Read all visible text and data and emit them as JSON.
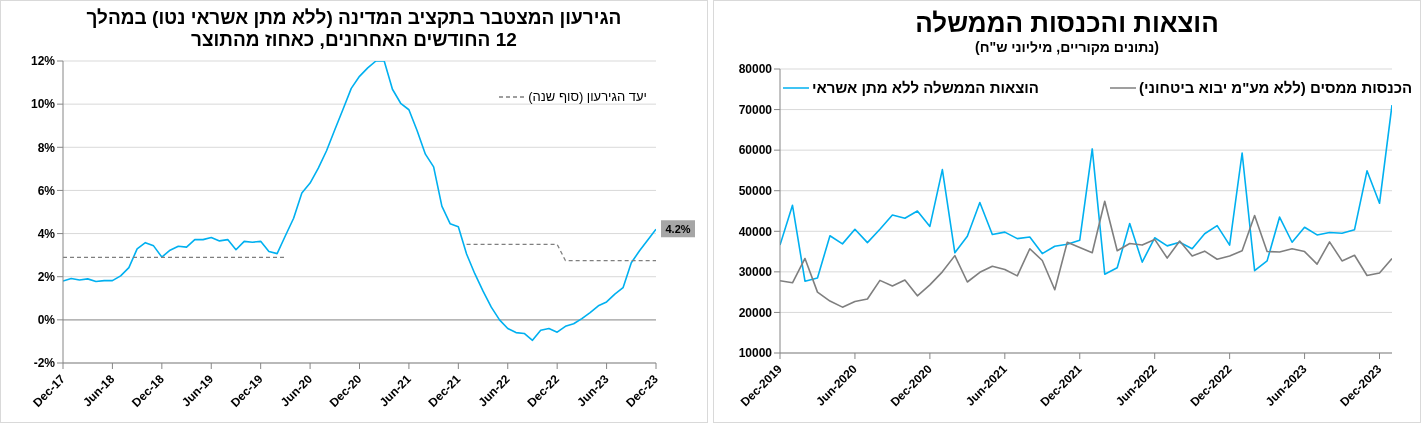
{
  "chart_data": [
    {
      "type": "line",
      "title": "הגירעון המצטבר בתקציב המדינה (ללא מתן אשראי נטו) במהלך 12 החודשים האחרונים, כאחוז מהתוצר",
      "categories": [
        "Dec-17",
        null,
        null,
        null,
        null,
        null,
        "Jun-18",
        null,
        null,
        null,
        null,
        null,
        "Dec-18",
        null,
        null,
        null,
        null,
        null,
        "Jun-19",
        null,
        null,
        null,
        null,
        null,
        "Dec-19",
        null,
        null,
        null,
        null,
        null,
        "Jun-20",
        null,
        null,
        null,
        null,
        null,
        "Dec-20",
        null,
        null,
        null,
        null,
        null,
        "Jun-21",
        null,
        null,
        null,
        null,
        null,
        "Dec-21",
        null,
        null,
        null,
        null,
        null,
        "Jun-22",
        null,
        null,
        null,
        null,
        null,
        "Dec-22",
        null,
        null,
        null,
        null,
        null,
        "Jun-23",
        null,
        null,
        null,
        null,
        null,
        "Dec-23"
      ],
      "series": [
        {
          "color": "#00b0f0",
          "values": [
            1.8,
            1.92,
            1.85,
            1.9,
            1.78,
            1.82,
            1.82,
            2.04,
            2.42,
            3.29,
            3.58,
            3.43,
            2.91,
            3.23,
            3.41,
            3.37,
            3.72,
            3.72,
            3.82,
            3.66,
            3.72,
            3.25,
            3.64,
            3.6,
            3.64,
            3.17,
            3.07,
            3.9,
            4.71,
            5.88,
            6.34,
            7.03,
            7.84,
            8.81,
            9.76,
            10.73,
            11.29,
            11.68,
            12,
            12,
            10.69,
            10.04,
            9.74,
            8.77,
            7.68,
            7.09,
            5.27,
            4.46,
            4.32,
            3.05,
            2.14,
            1.33,
            0.59,
            0,
            -0.4,
            -0.59,
            -0.63,
            -0.95,
            -0.48,
            -0.4,
            -0.57,
            -0.3,
            -0.18,
            0.06,
            0.34,
            0.65,
            0.83,
            1.19,
            1.49,
            2.65,
            3.2,
            3.7,
            4.2
          ]
        },
        {
          "name": "יעד הגירעון (סוף שנה)",
          "color": "#7f7f7f",
          "line_style": "dashed",
          "values": [
            2.9,
            2.9,
            2.9,
            2.9,
            2.9,
            2.9,
            2.9,
            2.9,
            2.9,
            2.9,
            2.9,
            2.9,
            2.9,
            2.9,
            2.9,
            2.9,
            2.9,
            2.9,
            2.9,
            2.9,
            2.9,
            2.9,
            2.9,
            2.9,
            2.9,
            2.9,
            2.9,
            2.9,
            null,
            null,
            null,
            null,
            null,
            null,
            null,
            null,
            null,
            null,
            null,
            null,
            null,
            null,
            null,
            null,
            null,
            null,
            null,
            null,
            null,
            3.5,
            3.5,
            3.5,
            3.5,
            3.5,
            3.5,
            3.5,
            3.5,
            3.5,
            3.5,
            3.5,
            3.5,
            2.75,
            2.75,
            2.75,
            2.75,
            2.75,
            2.75,
            2.75,
            2.75,
            2.75,
            2.75,
            2.75,
            2.75
          ]
        }
      ],
      "ylim": [
        -2,
        12
      ],
      "yticks": [
        {
          "value": -2,
          "label": "-2%"
        },
        {
          "value": 0,
          "label": "0%"
        },
        {
          "value": 2,
          "label": "2%"
        },
        {
          "value": 4,
          "label": "4%"
        },
        {
          "value": 6,
          "label": "6%"
        },
        {
          "value": 8,
          "label": "8%"
        },
        {
          "value": 10,
          "label": "10%"
        },
        {
          "value": 12,
          "label": "12%"
        }
      ],
      "ref_lines": [
        {
          "axis": "y",
          "value": 0,
          "color": "#a6a6a6"
        }
      ],
      "annotations": [
        {
          "text": "4.2%",
          "x": "Dec-23",
          "y": 4.2
        }
      ],
      "grid": "y",
      "legend": "top right"
    },
    {
      "type": "line",
      "title": "הוצאות והכנסות הממשלה",
      "subtitle": "(נתונים מקוריים, מיליוני ש\"ח)",
      "categories": [
        "Dec-2019",
        null,
        null,
        null,
        null,
        null,
        "Jun-2020",
        null,
        null,
        null,
        null,
        null,
        "Dec-2020",
        null,
        null,
        null,
        null,
        null,
        "Jun-2021",
        null,
        null,
        null,
        null,
        null,
        "Dec-2021",
        null,
        null,
        null,
        null,
        null,
        "Jun-2022",
        null,
        null,
        null,
        null,
        null,
        "Dec-2022",
        null,
        null,
        null,
        null,
        null,
        "Jun-2023",
        null,
        null,
        null,
        null,
        null,
        "Dec-2023",
        null
      ],
      "series": [
        {
          "name": "הוצאות הממשלה ללא מתן אשראי",
          "color": "#00b0f0",
          "values": [
            36600,
            46400,
            27700,
            28500,
            38900,
            36900,
            40500,
            37200,
            40500,
            44000,
            43200,
            45000,
            41200,
            55200,
            34700,
            38800,
            47100,
            39200,
            39800,
            38200,
            38600,
            34500,
            36300,
            36800,
            37800,
            60300,
            29400,
            31000,
            41900,
            32400,
            38400,
            36400,
            37300,
            35700,
            39400,
            41400,
            36600,
            59300,
            30300,
            32700,
            43500,
            37300,
            41000,
            39100,
            39700,
            39500,
            40400,
            54900,
            46900,
            71100
          ]
        },
        {
          "name": "הכנסות ממסים (ללא מע\"מ יבוא ביטחוני)",
          "color": "#7f7f7f",
          "values": [
            27800,
            27300,
            33300,
            25000,
            22800,
            21300,
            22700,
            23300,
            27900,
            26500,
            28000,
            24100,
            26800,
            30000,
            34000,
            27500,
            29900,
            31400,
            30600,
            29000,
            35700,
            32800,
            25600,
            37300,
            36000,
            34700,
            47400,
            35200,
            37000,
            36600,
            38000,
            33400,
            37600,
            33900,
            35100,
            33100,
            33900,
            35200,
            43900,
            35000,
            34900,
            35700,
            35000,
            31900,
            37400,
            32700,
            34100,
            29100,
            29700,
            33300
          ]
        }
      ],
      "ylim": [
        10000,
        80000
      ],
      "yticks": [
        10000,
        20000,
        30000,
        40000,
        50000,
        60000,
        70000,
        80000
      ],
      "grid": "y",
      "legend": "top"
    }
  ]
}
